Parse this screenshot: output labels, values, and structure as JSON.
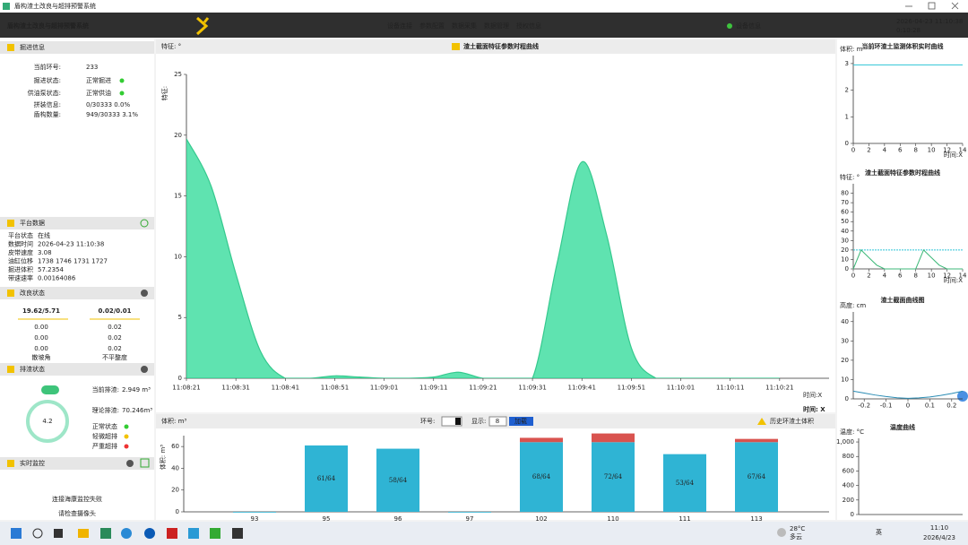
{
  "window": {
    "title": "盾构渣土改良与超排预警系统"
  },
  "header": {
    "title": "盾构渣土改良与超排预警系统",
    "nav": [
      "设备连接",
      "参数配置",
      "数据采集",
      "数据管理",
      "授权信息"
    ],
    "status": "设备信息",
    "datetime": "2026-04-23 11:10:38",
    "elapsed": "0:10:28"
  },
  "tunneling": {
    "title": "掘进信息",
    "rows": [
      [
        "当前环号:",
        "233"
      ],
      [
        "掘进状态:",
        "正常掘进"
      ],
      [
        "供油泵状态:",
        "正常供油"
      ],
      [
        "拼装信息:",
        "0/30333  0.0%"
      ],
      [
        "盾构数量:",
        "949/30333  3.1%"
      ]
    ]
  },
  "platform": {
    "title": "平台数据",
    "rows": [
      [
        "平台状态",
        "在线"
      ],
      [
        "数据时间",
        "2026-04-23 11:10:38"
      ],
      [
        "皮带速度",
        "3.08"
      ],
      [
        "油缸位移",
        "1738 1746 1731 1727"
      ],
      [
        "掘进体积",
        "57.2354"
      ],
      [
        "带速速率",
        "0.00164086"
      ]
    ]
  },
  "improvement": {
    "title": "改良状态",
    "headers": [
      "19.62/5.71",
      "0.02/0.01"
    ],
    "rows": [
      [
        "0.00",
        "0.02"
      ],
      [
        "0.00",
        "0.02"
      ],
      [
        "0.00",
        "0.02"
      ]
    ],
    "footers": [
      "散坡角",
      "不平整度"
    ]
  },
  "discharge": {
    "title": "排渣状态",
    "gauge": "4.2",
    "rows": [
      [
        "当前排渣:",
        "2.949 m³"
      ],
      [
        "理论排渣:",
        "70.246m³"
      ]
    ],
    "legend": [
      "正常状态",
      "轻微超排",
      "严重超排"
    ]
  },
  "monitor": {
    "title": "实时监控",
    "messages": [
      "连接海康监控失败",
      "请检查摄像头"
    ]
  },
  "main_chart": {
    "type": "area",
    "title": "渣土截面特征参数时程曲线",
    "corner_label": "特征: °",
    "ylabel": "特征:",
    "xlabel": "时间:X",
    "xlabel2": "时间: X",
    "color": "#5fe3b0",
    "x": [
      "11:08:21",
      "11:08:26",
      "11:08:31",
      "11:08:36",
      "11:08:41",
      "11:08:46",
      "11:08:51",
      "11:08:56",
      "11:09:01",
      "11:09:06",
      "11:09:11",
      "11:09:16",
      "11:09:21",
      "11:09:26",
      "11:09:31",
      "11:09:36",
      "11:09:41",
      "11:09:46",
      "11:09:51",
      "11:09:56",
      "11:10:01",
      "11:10:06",
      "11:10:11",
      "11:10:16",
      "11:10:21"
    ],
    "values": [
      19.7,
      15.8,
      8.6,
      2.2,
      0,
      0,
      0.2,
      0.1,
      0,
      0,
      0.1,
      0.5,
      0,
      0,
      0,
      9.5,
      17.8,
      11.8,
      2.5,
      0,
      0,
      0,
      0,
      0,
      0
    ],
    "xlim": [
      "11:08:21",
      "11:10:31"
    ],
    "xticks": [
      "11:08:21",
      "11:08:31",
      "11:08:41",
      "11:08:51",
      "11:09:01",
      "11:09:11",
      "11:09:21",
      "11:09:31",
      "11:09:41",
      "11:09:51",
      "11:10:01",
      "11:10:11",
      "11:10:21"
    ],
    "ylim": [
      0,
      25
    ],
    "yticks": [
      0,
      5,
      10,
      15,
      20,
      25
    ]
  },
  "volume_chart": {
    "type": "bar",
    "title": "体积: m³",
    "ylabel": "体积: m³",
    "ring_label": "环号:",
    "show_label": "显示:",
    "show_value": "8",
    "button": "加载",
    "categories": [
      "93",
      "95",
      "96",
      "97",
      "102",
      "110",
      "111",
      "113"
    ],
    "series": [
      {
        "name": "历史环渣土体积",
        "color": "#2fb4d4",
        "values": [
          0,
          61,
          58,
          0,
          68,
          72,
          53,
          67
        ],
        "value_labels": [
          null,
          "61/64",
          "58/64",
          null,
          "68/64",
          "72/64",
          "53/64",
          "67/64"
        ]
      }
    ],
    "limits": [
      64,
      64,
      64,
      64,
      64,
      64,
      64,
      64
    ],
    "over_color": "#d9534f",
    "ylim": [
      0,
      70
    ],
    "yticks": [
      0,
      20,
      40,
      60
    ]
  },
  "side_charts": [
    {
      "type": "line",
      "title": "当前环渣土监测体积实时曲线",
      "ylabel": "体积: m³",
      "xlabel": "时间:X",
      "x": [
        0,
        1,
        2,
        3,
        4,
        5,
        6,
        7,
        8,
        9,
        10,
        11,
        12,
        13,
        14
      ],
      "series": [
        {
          "color": "#2ec4d6",
          "values": [
            2.95,
            2.95,
            2.95,
            2.95,
            2.95,
            2.95,
            2.95,
            2.95,
            2.95,
            2.95,
            2.95,
            2.95,
            2.95,
            2.95,
            2.95
          ]
        }
      ],
      "xlim": [
        0,
        14
      ],
      "xticks": [
        0,
        2,
        4,
        6,
        8,
        10,
        12,
        14
      ],
      "ylim": [
        0,
        3.3
      ],
      "yticks": [
        0,
        1,
        2,
        3
      ]
    },
    {
      "type": "line",
      "title": "渣土截面特征参数时程曲线",
      "ylabel": "特征: °",
      "xlabel": "时间:X",
      "x": [
        0,
        1,
        2,
        3,
        4,
        5,
        6,
        7,
        8,
        9,
        10,
        11,
        12,
        13,
        14
      ],
      "series": [
        {
          "color": "#2ec4d6",
          "values": [
            20,
            20,
            20,
            20,
            20,
            20,
            20,
            20,
            20,
            20,
            20,
            20,
            20,
            20,
            20
          ]
        },
        {
          "color": "#3cb878",
          "values": [
            0,
            20,
            12,
            4,
            0,
            0,
            0,
            0,
            0,
            20,
            12,
            4,
            0,
            0,
            0
          ]
        }
      ],
      "xlim": [
        0,
        14
      ],
      "xticks": [
        0,
        2,
        4,
        6,
        8,
        10,
        12,
        14
      ],
      "ylim": [
        0,
        90
      ],
      "yticks": [
        0,
        10,
        20,
        30,
        40,
        50,
        60,
        70,
        80
      ]
    },
    {
      "type": "line",
      "title": "渣土截面曲线图",
      "ylabel": "高度: cm",
      "x": [
        -0.25,
        -0.2,
        -0.15,
        -0.1,
        -0.05,
        0,
        0.05,
        0.1,
        0.15,
        0.2,
        0.25
      ],
      "series": [
        {
          "color": "#2a8cb4",
          "values": [
            4,
            3,
            2,
            1.2,
            0.6,
            0.3,
            0.5,
            1,
            1.8,
            2.8,
            4
          ]
        }
      ],
      "xlim": [
        -0.25,
        0.25
      ],
      "xticks": [
        -0.2,
        -0.1,
        0,
        0.1,
        0.2
      ],
      "ylim": [
        0,
        45
      ],
      "yticks": [
        0,
        10,
        20,
        30,
        40
      ]
    },
    {
      "type": "line",
      "title": "温度曲线",
      "ylabel": "温度: °C",
      "ylim": [
        0,
        1050
      ],
      "yticks": [
        0,
        200,
        400,
        600,
        800,
        {
          "value": 1000,
          "label": "1,000"
        }
      ]
    }
  ],
  "taskbar": {
    "weather_temp": "28°C",
    "weather": "多云",
    "ime": "英",
    "time": "11:10",
    "date": "2026/4/23"
  }
}
